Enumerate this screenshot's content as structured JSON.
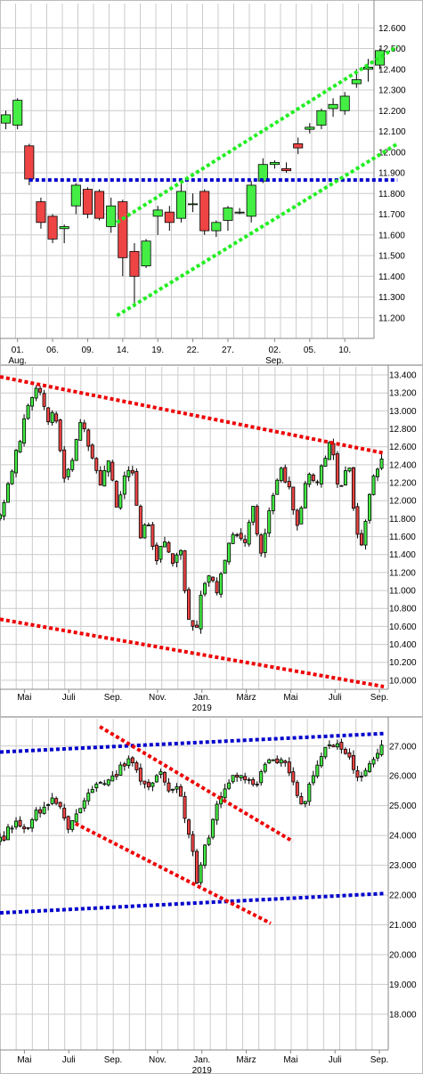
{
  "colors": {
    "up": "#44ee44",
    "down": "#ee4444",
    "candle_outline": "#000000",
    "grid": "#cccccc",
    "support_resistance_blue": "#0000cc",
    "trend_green": "#22ee22",
    "trend_red": "#ee0000",
    "background": "#ffffff"
  },
  "chart_data": [
    {
      "type": "candlestick",
      "title": "",
      "ylim": [
        11100,
        12700
      ],
      "yticks": [
        11200,
        11300,
        11400,
        11500,
        11600,
        11700,
        11800,
        11900,
        12000,
        12100,
        12200,
        12300,
        12400,
        12500,
        12600
      ],
      "ytick_labels": [
        "11.200",
        "11.300",
        "11.400",
        "11.500",
        "11.600",
        "11.700",
        "11.800",
        "11.900",
        "12.000",
        "12.100",
        "12.200",
        "12.300",
        "12.400",
        "12.500",
        "12.600"
      ],
      "xlim": [
        -0.5,
        31.5
      ],
      "xticks": [
        {
          "x": 1,
          "label": "01.",
          "sub": "Aug."
        },
        {
          "x": 4,
          "label": "06."
        },
        {
          "x": 7,
          "label": "09."
        },
        {
          "x": 10,
          "label": "14."
        },
        {
          "x": 13,
          "label": "19."
        },
        {
          "x": 16,
          "label": "22."
        },
        {
          "x": 19,
          "label": "27."
        },
        {
          "x": 23,
          "label": "02.",
          "sub": "Sep."
        },
        {
          "x": 26,
          "label": "05."
        },
        {
          "x": 29,
          "label": "10."
        }
      ],
      "grid": true,
      "candles": [
        {
          "x": 0,
          "o": 12140,
          "h": 12200,
          "l": 12110,
          "c": 12180
        },
        {
          "x": 1,
          "o": 12130,
          "h": 12260,
          "l": 12110,
          "c": 12250
        },
        {
          "x": 2,
          "o": 12030,
          "h": 12040,
          "l": 11840,
          "c": 11870
        },
        {
          "x": 3,
          "o": 11760,
          "h": 11780,
          "l": 11630,
          "c": 11660
        },
        {
          "x": 4,
          "o": 11690,
          "h": 11700,
          "l": 11560,
          "c": 11580
        },
        {
          "x": 5,
          "o": 11630,
          "h": 11650,
          "l": 11560,
          "c": 11640
        },
        {
          "x": 6,
          "o": 11740,
          "h": 11850,
          "l": 11700,
          "c": 11840
        },
        {
          "x": 7,
          "o": 11820,
          "h": 11830,
          "l": 11680,
          "c": 11700
        },
        {
          "x": 8,
          "o": 11810,
          "h": 11820,
          "l": 11670,
          "c": 11680
        },
        {
          "x": 9,
          "o": 11640,
          "h": 11780,
          "l": 11610,
          "c": 11740
        },
        {
          "x": 10,
          "o": 11760,
          "h": 11770,
          "l": 11400,
          "c": 11490
        },
        {
          "x": 11,
          "o": 11520,
          "h": 11560,
          "l": 11250,
          "c": 11400
        },
        {
          "x": 12,
          "o": 11450,
          "h": 11580,
          "l": 11440,
          "c": 11570
        },
        {
          "x": 13,
          "o": 11690,
          "h": 11740,
          "l": 11600,
          "c": 11720
        },
        {
          "x": 14,
          "o": 11710,
          "h": 11740,
          "l": 11620,
          "c": 11660
        },
        {
          "x": 15,
          "o": 11680,
          "h": 11850,
          "l": 11660,
          "c": 11810
        },
        {
          "x": 16,
          "o": 11750,
          "h": 11800,
          "l": 11710,
          "c": 11750
        },
        {
          "x": 17,
          "o": 11810,
          "h": 11820,
          "l": 11600,
          "c": 11620
        },
        {
          "x": 18,
          "o": 11620,
          "h": 11670,
          "l": 11590,
          "c": 11660
        },
        {
          "x": 19,
          "o": 11670,
          "h": 11740,
          "l": 11620,
          "c": 11730
        },
        {
          "x": 20,
          "o": 11710,
          "h": 11730,
          "l": 11700,
          "c": 11710
        },
        {
          "x": 21,
          "o": 11690,
          "h": 11860,
          "l": 11660,
          "c": 11840
        },
        {
          "x": 22,
          "o": 11860,
          "h": 11970,
          "l": 11850,
          "c": 11940
        },
        {
          "x": 23,
          "o": 11940,
          "h": 11960,
          "l": 11920,
          "c": 11950
        },
        {
          "x": 24,
          "o": 11920,
          "h": 11950,
          "l": 11900,
          "c": 11910
        },
        {
          "x": 25,
          "o": 12040,
          "h": 12070,
          "l": 11990,
          "c": 12020
        },
        {
          "x": 26,
          "o": 12110,
          "h": 12140,
          "l": 12090,
          "c": 12120
        },
        {
          "x": 27,
          "o": 12130,
          "h": 12210,
          "l": 12110,
          "c": 12200
        },
        {
          "x": 28,
          "o": 12210,
          "h": 12260,
          "l": 12170,
          "c": 12230
        },
        {
          "x": 29,
          "o": 12200,
          "h": 12290,
          "l": 12180,
          "c": 12270
        },
        {
          "x": 30,
          "o": 12330,
          "h": 12400,
          "l": 12310,
          "c": 12350
        },
        {
          "x": 31,
          "o": 12400,
          "h": 12450,
          "l": 12340,
          "c": 12410
        },
        {
          "x": 32,
          "o": 12420,
          "h": 12500,
          "l": 12400,
          "c": 12490
        }
      ],
      "lines": [
        {
          "style": "blue",
          "x1": 2,
          "y1": 11865,
          "x2": 33.5,
          "y2": 11865
        },
        {
          "style": "green",
          "x1": 9.5,
          "y1": 11660,
          "x2": 33.5,
          "y2": 12510
        },
        {
          "style": "green",
          "x1": 9.5,
          "y1": 11210,
          "x2": 33.5,
          "y2": 12040
        }
      ]
    },
    {
      "type": "candlestick",
      "title": "",
      "ylim": [
        9900,
        13450
      ],
      "yticks": [
        10000,
        10200,
        10400,
        10600,
        10800,
        11000,
        11200,
        11400,
        11600,
        11800,
        12000,
        12200,
        12400,
        12600,
        12800,
        13000,
        13200,
        13400
      ],
      "ytick_labels": [
        "10.000",
        "10.200",
        "10.400",
        "10.600",
        "10.800",
        "11.000",
        "11.200",
        "11.400",
        "11.600",
        "11.800",
        "12.000",
        "12.200",
        "12.400",
        "12.600",
        "12.800",
        "13.000",
        "13.200",
        "13.400"
      ],
      "xlim": [
        0,
        17.5
      ],
      "xticks": [
        {
          "x": 1.1,
          "label": "Mai"
        },
        {
          "x": 3.1,
          "label": "Juli"
        },
        {
          "x": 5.1,
          "label": "Sep."
        },
        {
          "x": 7.1,
          "label": "Nov."
        },
        {
          "x": 9.1,
          "label": "Jan.",
          "sub": "2019"
        },
        {
          "x": 11.1,
          "label": "März"
        },
        {
          "x": 13.1,
          "label": "Mai"
        },
        {
          "x": 15.1,
          "label": "Juli"
        },
        {
          "x": 17.1,
          "label": "Sep."
        }
      ],
      "grid": true,
      "path": [
        [
          0,
          11800
        ],
        [
          0.6,
          12400
        ],
        [
          1.0,
          12800
        ],
        [
          1.3,
          13100
        ],
        [
          1.7,
          13250
        ],
        [
          2.2,
          12900
        ],
        [
          2.5,
          13000
        ],
        [
          2.9,
          12200
        ],
        [
          3.3,
          12500
        ],
        [
          3.7,
          12900
        ],
        [
          4.1,
          12500
        ],
        [
          4.5,
          12200
        ],
        [
          4.9,
          12450
        ],
        [
          5.3,
          11900
        ],
        [
          5.6,
          12250
        ],
        [
          5.9,
          12450
        ],
        [
          6.3,
          11600
        ],
        [
          6.6,
          11800
        ],
        [
          7.0,
          11300
        ],
        [
          7.4,
          11600
        ],
        [
          7.8,
          11300
        ],
        [
          8.1,
          11500
        ],
        [
          8.5,
          10700
        ],
        [
          8.8,
          10500
        ],
        [
          9.1,
          11000
        ],
        [
          9.5,
          11200
        ],
        [
          9.8,
          11000
        ],
        [
          10.2,
          11400
        ],
        [
          10.6,
          11700
        ],
        [
          11.0,
          11500
        ],
        [
          11.4,
          11900
        ],
        [
          11.8,
          11400
        ],
        [
          12.2,
          12000
        ],
        [
          12.6,
          12350
        ],
        [
          13.0,
          12200
        ],
        [
          13.4,
          11700
        ],
        [
          13.8,
          12300
        ],
        [
          14.2,
          12200
        ],
        [
          14.6,
          12400
        ],
        [
          14.9,
          12650
        ],
        [
          15.3,
          12100
        ],
        [
          15.7,
          12500
        ],
        [
          16.0,
          11700
        ],
        [
          16.3,
          11500
        ],
        [
          16.6,
          12000
        ],
        [
          16.9,
          12300
        ],
        [
          17.2,
          12500
        ]
      ],
      "lines": [
        {
          "style": "red",
          "x1": 0,
          "y1": 13380,
          "x2": 17.3,
          "y2": 12530
        },
        {
          "style": "red",
          "x1": 0,
          "y1": 10680,
          "x2": 17.3,
          "y2": 9930
        }
      ]
    },
    {
      "type": "candlestick",
      "title": "",
      "ylim": [
        16800,
        27800
      ],
      "yticks": [
        18000,
        19000,
        20000,
        21000,
        22000,
        23000,
        24000,
        25000,
        26000,
        27000
      ],
      "ytick_labels": [
        "18.000",
        "19.000",
        "20.000",
        "21.000",
        "22.000",
        "23.000",
        "24.000",
        "25.000",
        "26.000",
        "27.000"
      ],
      "xlim": [
        0,
        17.5
      ],
      "xticks": [
        {
          "x": 1.1,
          "label": "Mai"
        },
        {
          "x": 3.1,
          "label": "Juli"
        },
        {
          "x": 5.1,
          "label": "Sep."
        },
        {
          "x": 7.1,
          "label": "Nov."
        },
        {
          "x": 9.1,
          "label": "Jan.",
          "sub": "2019"
        },
        {
          "x": 11.1,
          "label": "März"
        },
        {
          "x": 13.1,
          "label": "Mai"
        },
        {
          "x": 15.1,
          "label": "Juli"
        },
        {
          "x": 17.1,
          "label": "Sep."
        }
      ],
      "grid": true,
      "path": [
        [
          0,
          23800
        ],
        [
          0.4,
          24200
        ],
        [
          0.8,
          24500
        ],
        [
          1.2,
          24300
        ],
        [
          1.6,
          24700
        ],
        [
          2.0,
          24900
        ],
        [
          2.4,
          25200
        ],
        [
          2.8,
          24900
        ],
        [
          3.1,
          24200
        ],
        [
          3.5,
          24900
        ],
        [
          3.9,
          25300
        ],
        [
          4.3,
          25700
        ],
        [
          4.7,
          25600
        ],
        [
          5.1,
          25900
        ],
        [
          5.5,
          26300
        ],
        [
          5.8,
          26700
        ],
        [
          6.2,
          26200
        ],
        [
          6.5,
          25600
        ],
        [
          6.8,
          25800
        ],
        [
          7.2,
          26300
        ],
        [
          7.6,
          25400
        ],
        [
          8.0,
          25800
        ],
        [
          8.3,
          24800
        ],
        [
          8.6,
          23700
        ],
        [
          8.9,
          22400
        ],
        [
          9.1,
          23200
        ],
        [
          9.4,
          24000
        ],
        [
          9.8,
          25000
        ],
        [
          10.2,
          25600
        ],
        [
          10.6,
          26100
        ],
        [
          11.0,
          25900
        ],
        [
          11.4,
          25600
        ],
        [
          11.8,
          26200
        ],
        [
          12.2,
          26500
        ],
        [
          12.6,
          26600
        ],
        [
          13.0,
          26200
        ],
        [
          13.4,
          25200
        ],
        [
          13.7,
          24900
        ],
        [
          14.0,
          25900
        ],
        [
          14.4,
          26600
        ],
        [
          14.8,
          27000
        ],
        [
          15.2,
          27200
        ],
        [
          15.6,
          26800
        ],
        [
          15.9,
          26200
        ],
        [
          16.2,
          25800
        ],
        [
          16.6,
          26200
        ],
        [
          16.9,
          26700
        ],
        [
          17.2,
          27000
        ]
      ],
      "lines": [
        {
          "style": "blue",
          "x1": 0,
          "y1": 26800,
          "x2": 17.3,
          "y2": 27420
        },
        {
          "style": "blue",
          "x1": 0,
          "y1": 21400,
          "x2": 17.3,
          "y2": 22050
        },
        {
          "style": "red",
          "x1": 4.5,
          "y1": 27650,
          "x2": 13.2,
          "y2": 23800
        },
        {
          "style": "red",
          "x1": 3.4,
          "y1": 24400,
          "x2": 12.2,
          "y2": 21050
        }
      ]
    }
  ]
}
